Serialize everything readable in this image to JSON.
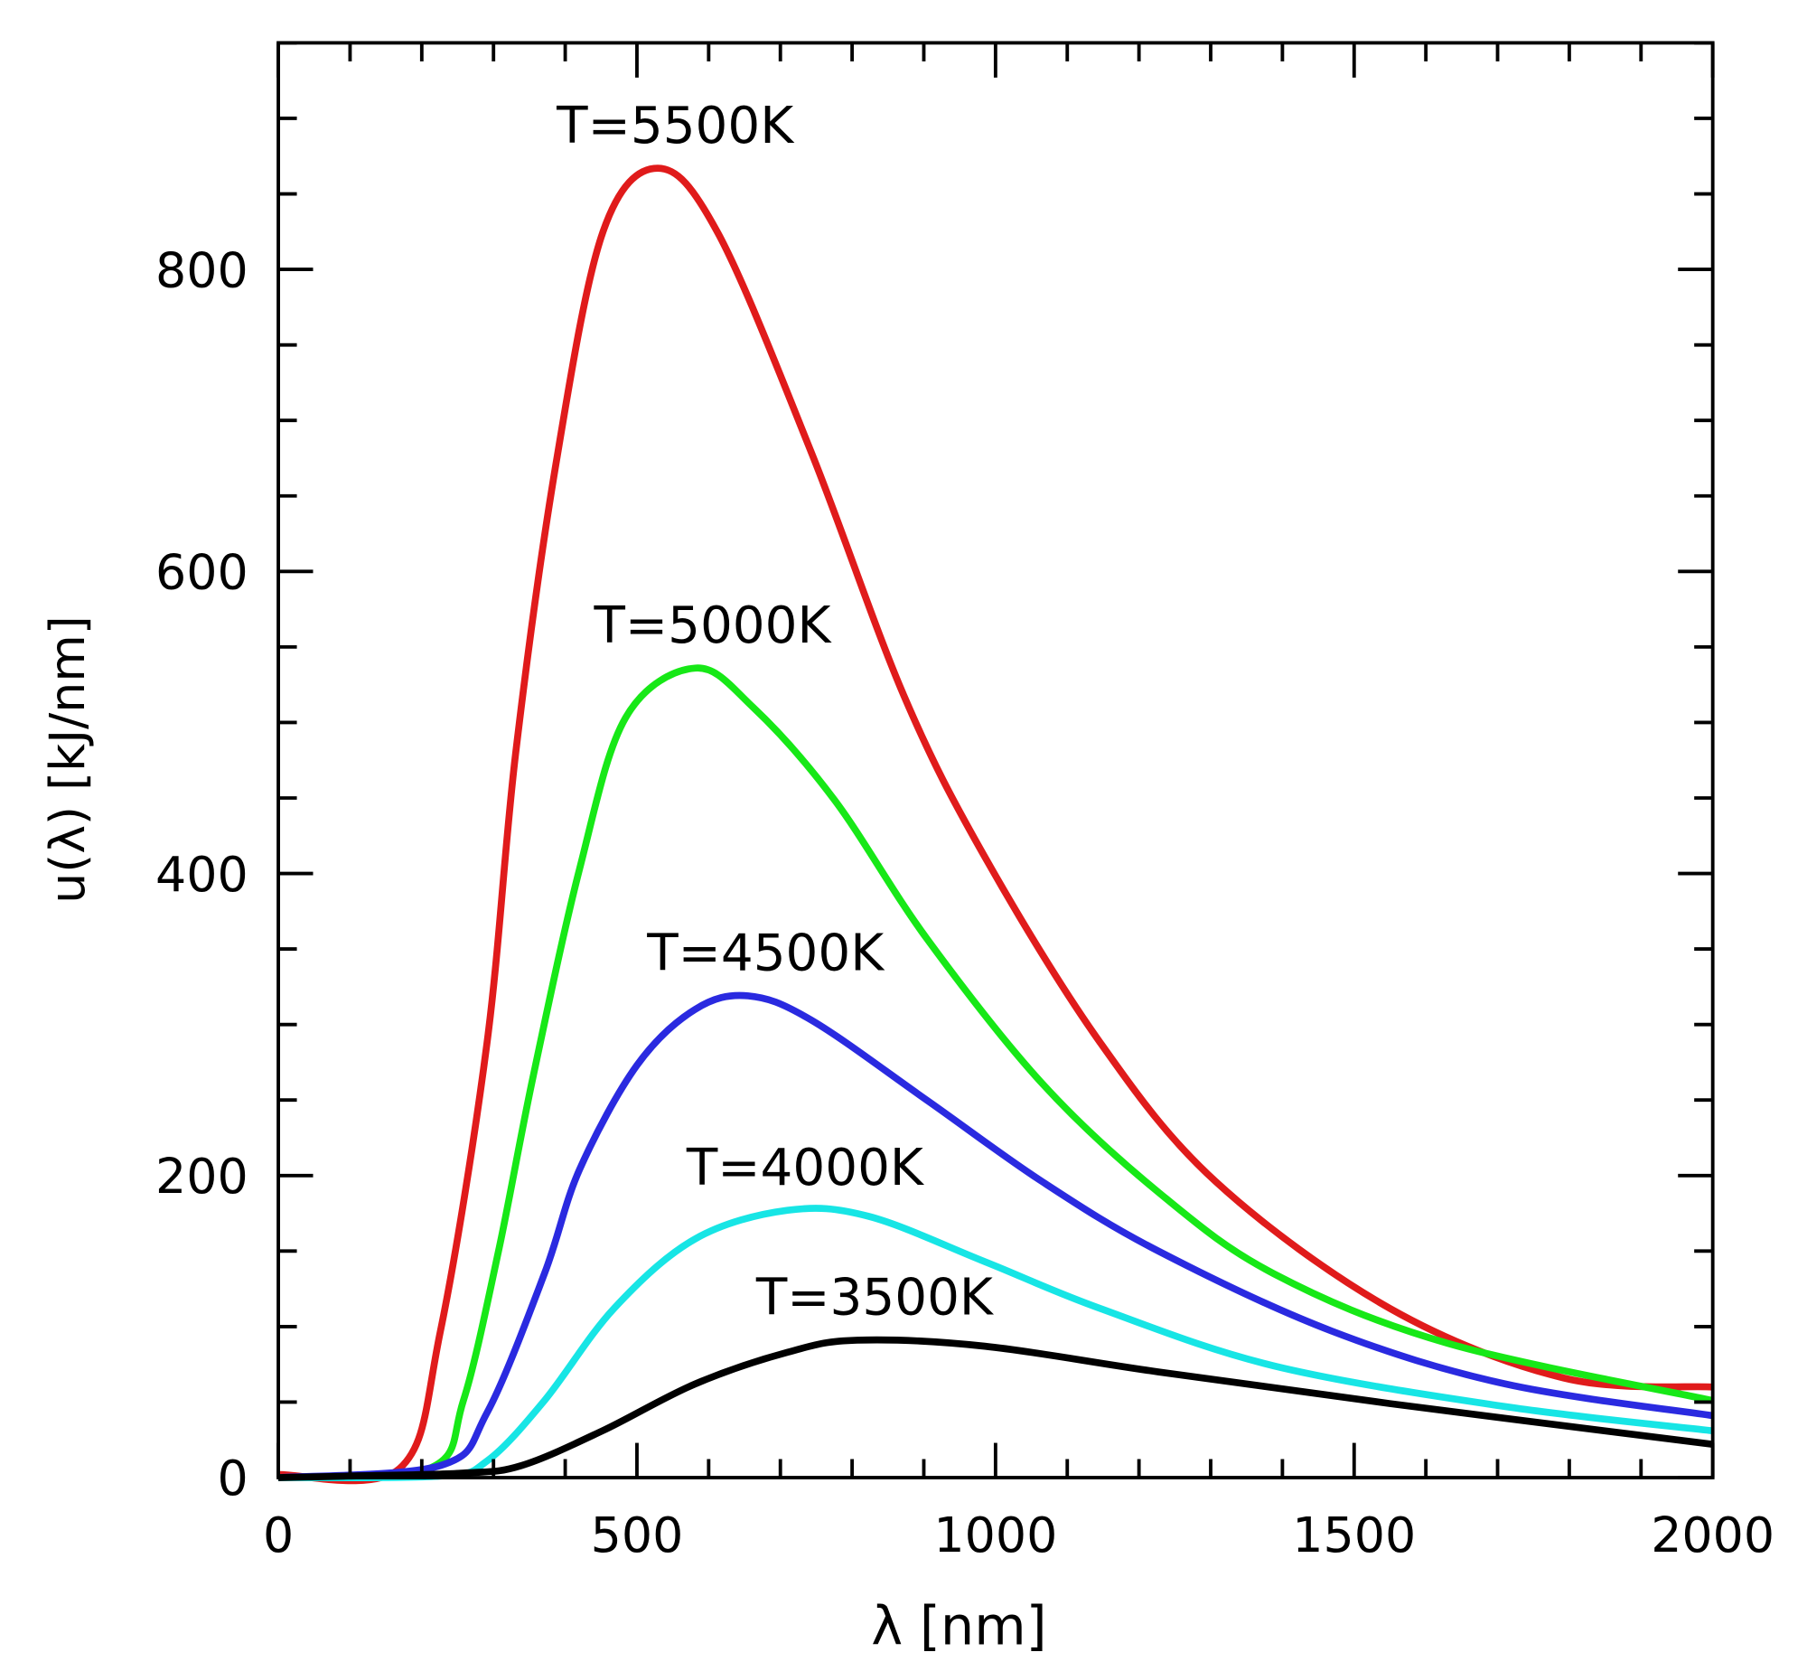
{
  "chart_data": {
    "type": "line",
    "title": "",
    "xlabel": "λ [nm]",
    "ylabel": "u(λ) [kJ/nm]",
    "xlim": [
      0,
      2000
    ],
    "ylim": [
      0,
      950
    ],
    "xticks": [
      0,
      500,
      1000,
      1500,
      2000
    ],
    "yticks": [
      0,
      200,
      400,
      600,
      800
    ],
    "xtick_labels": [
      "0",
      "500",
      "1000",
      "1500",
      "2000"
    ],
    "ytick_labels": [
      "0",
      "200",
      "400",
      "600",
      "800"
    ],
    "x_minor_step": 100,
    "y_minor_step": 50,
    "grid": false,
    "series": [
      {
        "name": "T=5500K",
        "color": "#e01b1b",
        "x": [
          0,
          169,
          226,
          291,
          331,
          387,
          452,
          529,
          613,
          743,
          872,
          985,
          1146,
          1307,
          1550,
          1792,
          2000
        ],
        "y": [
          2,
          6,
          97,
          288,
          480,
          671,
          824,
          867,
          824,
          679,
          518,
          411,
          288,
          196,
          112,
          66,
          60
        ]
      },
      {
        "name": "T=5000K",
        "color": "#17e817",
        "x": [
          0,
          210,
          258,
          307,
          355,
          420,
          484,
          581,
          662,
          775,
          904,
          1065,
          1227,
          1388,
          1630,
          2000
        ],
        "y": [
          0,
          6,
          51,
          150,
          265,
          403,
          503,
          536,
          510,
          449,
          357,
          261,
          189,
          135,
          89,
          51
        ]
      },
      {
        "name": "T=4500K",
        "color": "#2a2ae0",
        "x": [
          0,
          226,
          291,
          371,
          420,
          500,
          581,
          655,
          743,
          904,
          1065,
          1227,
          1469,
          1711,
          2000
        ],
        "y": [
          0,
          8,
          43,
          135,
          204,
          273,
          310,
          319,
          303,
          250,
          196,
          150,
          97,
          62,
          41
        ]
      },
      {
        "name": "T=4000K",
        "color": "#17e5e5",
        "x": [
          0,
          226,
          291,
          371,
          468,
          581,
          710,
          823,
          985,
          1146,
          1388,
          1711,
          2000
        ],
        "y": [
          0,
          1,
          11,
          51,
          112,
          158,
          177,
          173,
          143,
          112,
          74,
          47,
          31
        ]
      },
      {
        "name": "T=3500K",
        "color": "#000000",
        "x": [
          0,
          97,
          258,
          339,
          452,
          581,
          710,
          807,
          985,
          1227,
          1550,
          2000
        ],
        "y": [
          0,
          1,
          3,
          8,
          31,
          62,
          83,
          91,
          87,
          70,
          49,
          22
        ]
      }
    ]
  }
}
